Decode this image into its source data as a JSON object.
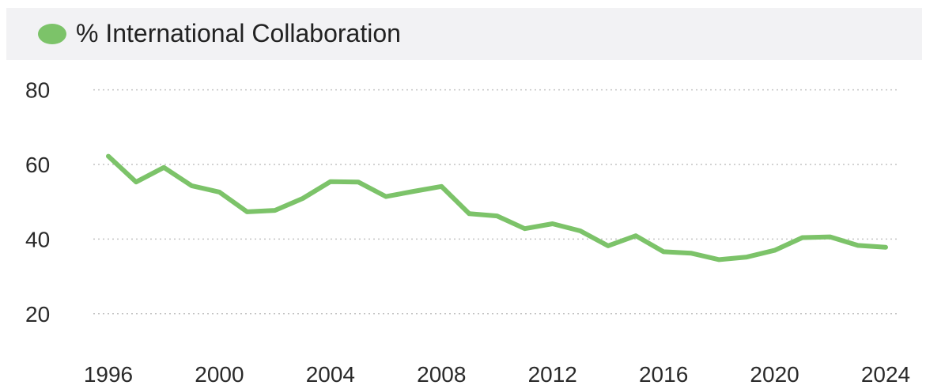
{
  "legend": {
    "label": "% International Collaboration"
  },
  "colors": {
    "series": "#7cc369",
    "grid": "#c4c4c4",
    "legend_bg": "#f2f2f4"
  },
  "chart_data": {
    "type": "line",
    "title": "",
    "xlabel": "",
    "ylabel": "",
    "grid": true,
    "legend_position": "top-left",
    "ylim": [
      10,
      85
    ],
    "xlim": [
      1996,
      2024
    ],
    "y_ticks": [
      20,
      40,
      60,
      80
    ],
    "x_ticks": [
      1996,
      2000,
      2004,
      2008,
      2012,
      2016,
      2020,
      2024
    ],
    "series": [
      {
        "name": "% International Collaboration",
        "x": [
          1996,
          1997,
          1998,
          1999,
          2000,
          2001,
          2002,
          2003,
          2004,
          2005,
          2006,
          2007,
          2008,
          2009,
          2010,
          2011,
          2012,
          2013,
          2014,
          2015,
          2016,
          2017,
          2018,
          2019,
          2020,
          2021,
          2022,
          2023,
          2024
        ],
        "values": [
          62.2,
          55.3,
          59.2,
          54.3,
          52.6,
          47.3,
          47.7,
          50.9,
          55.4,
          55.3,
          51.4,
          52.8,
          54.1,
          46.8,
          46.2,
          42.8,
          44.1,
          42.2,
          38.2,
          40.9,
          36.6,
          36.2,
          34.5,
          35.2,
          37.0,
          40.4,
          40.6,
          38.3,
          37.8
        ]
      }
    ]
  }
}
